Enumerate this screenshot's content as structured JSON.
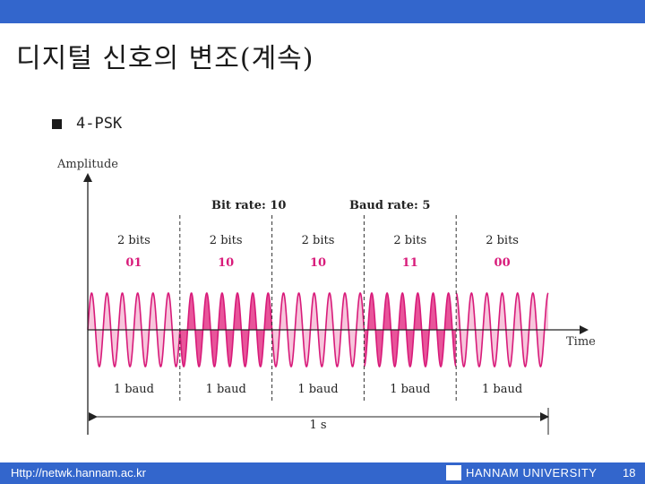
{
  "slide": {
    "title": "디지털 신호의 변조(계속)",
    "bullet": "4-PSK"
  },
  "figure": {
    "y_axis_label": "Amplitude",
    "x_axis_label": "Time",
    "bit_rate_label": "Bit rate: 10",
    "baud_rate_label": "Baud rate: 5",
    "segments": [
      {
        "bits_label": "2 bits",
        "bits": "01",
        "baud_label": "1 baud",
        "phase_deg": 0
      },
      {
        "bits_label": "2 bits",
        "bits": "10",
        "baud_label": "1 baud",
        "phase_deg": 180
      },
      {
        "bits_label": "2 bits",
        "bits": "10",
        "baud_label": "1 baud",
        "phase_deg": 180
      },
      {
        "bits_label": "2 bits",
        "bits": "11",
        "baud_label": "1 baud",
        "phase_deg": 270
      },
      {
        "bits_label": "2 bits",
        "bits": "00",
        "baud_label": "1 baud",
        "phase_deg": 90
      }
    ],
    "duration_label": "1 s",
    "cycles_per_segment": 6,
    "colors": {
      "bits": "#d81b7a",
      "wave_stroke": "#d81b7a",
      "fill_light": "#f7c6dc",
      "fill_dark": "#e8559a",
      "axis": "#222222"
    }
  },
  "footer": {
    "url": "Http://netwk.hannam.ac.kr",
    "university": "HANNAM UNIVERSITY",
    "page": "18"
  }
}
